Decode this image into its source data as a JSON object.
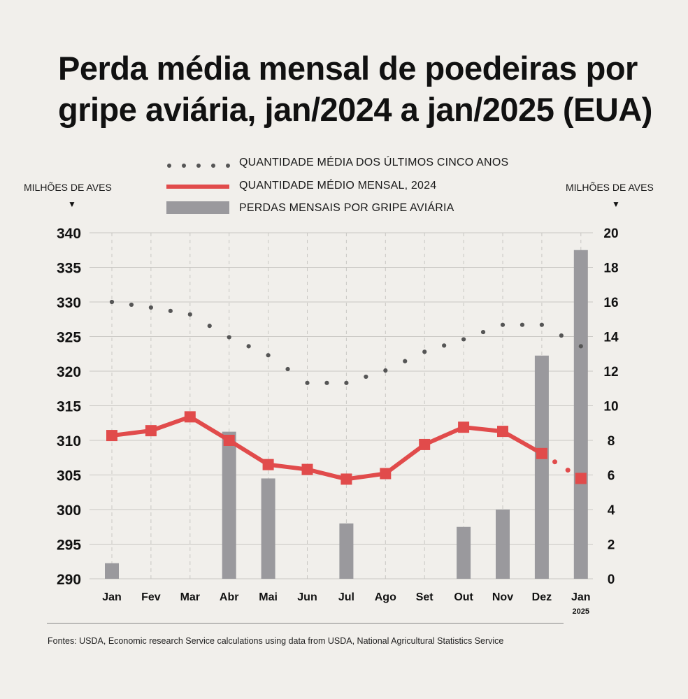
{
  "title": "Perda média mensal de poedeiras por gripe aviária, jan/2024 a jan/2025 (EUA)",
  "legend": {
    "avg5": "QUANTIDADE MÉDIA DOS ÚLTIMOS CINCO ANOS",
    "monthly": "QUANTIDADE MÉDIO MENSAL, 2024",
    "losses": "PERDAS MENSAIS POR GRIPE AVIÁRIA"
  },
  "left_axis_label": "MILHÕES DE AVES",
  "right_axis_label": "MILHÕES DE AVES",
  "arrow_glyph": "▼",
  "source": "Fontes: USDA, Economic research Service calculations using data from USDA, National Agricultural Statistics Service",
  "colors": {
    "background": "#f1efeb",
    "red": "#e14b4b",
    "bar": "#9a999d",
    "dots": "#555555",
    "grid": "#c9c7c3"
  },
  "chart_data": {
    "type": "bar+line",
    "categories": [
      "Jan",
      "Fev",
      "Mar",
      "Abr",
      "Mai",
      "Jun",
      "Jul",
      "Ago",
      "Set",
      "Out",
      "Nov",
      "Dez",
      "Jan"
    ],
    "category_sublabels": [
      "",
      "",
      "",
      "",
      "",
      "",
      "",
      "",
      "",
      "",
      "",
      "",
      "2025"
    ],
    "left_axis": {
      "ylim": [
        290,
        340
      ],
      "ticks": [
        290,
        295,
        300,
        305,
        310,
        315,
        320,
        325,
        330,
        335,
        340
      ]
    },
    "right_axis": {
      "ylim": [
        0,
        20
      ],
      "ticks": [
        0,
        2,
        4,
        6,
        8,
        10,
        12,
        14,
        16,
        18,
        20
      ]
    },
    "series": [
      {
        "name": "QUANTIDADE MÉDIA DOS ÚLTIMOS CINCO ANOS",
        "type": "dotted-line",
        "axis": "left",
        "values": [
          330,
          329.2,
          328.2,
          324.9,
          322.3,
          318.3,
          318.3,
          320.1,
          322.8,
          324.6,
          326.7,
          326.7,
          323.6
        ]
      },
      {
        "name": "QUANTIDADE MÉDIO MENSAL, 2024",
        "type": "line",
        "axis": "left",
        "values": [
          310.7,
          311.4,
          313.4,
          310.0,
          306.5,
          305.8,
          304.4,
          305.2,
          309.4,
          311.9,
          311.3,
          308.1,
          304.5
        ],
        "dashed_last_segment": true
      },
      {
        "name": "PERDAS MENSAIS POR GRIPE AVIÁRIA",
        "type": "bar",
        "axis": "right",
        "values": [
          0.9,
          0,
          0,
          8.5,
          5.8,
          0,
          3.2,
          0,
          0,
          3.0,
          4.0,
          12.9,
          19.0
        ]
      }
    ]
  }
}
